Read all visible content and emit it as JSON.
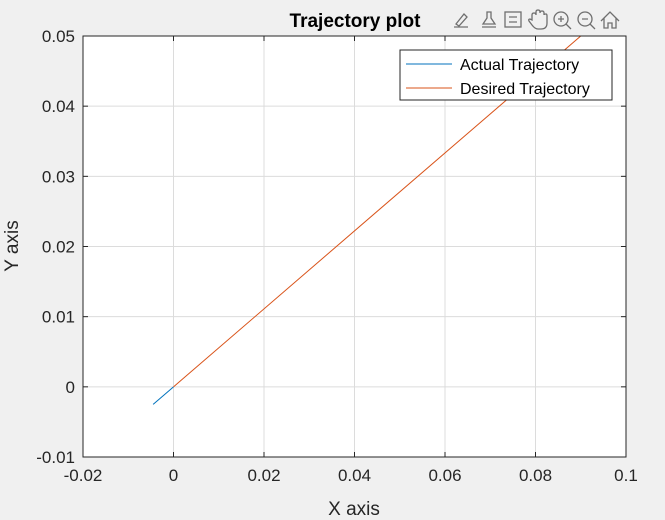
{
  "toolbar": {
    "icons": [
      "brush-icon",
      "datatip-icon",
      "restore-view-icon",
      "pan-hand-icon",
      "zoom-in-icon",
      "zoom-out-icon",
      "home-icon"
    ]
  },
  "colors": {
    "figure_bg": "#f0f0f0",
    "axes_bg": "#ffffff",
    "grid": "#dcdcdc",
    "actual": "#0072bd",
    "desired": "#d95319"
  },
  "chart_data": {
    "type": "line",
    "title": "Trajectory plot",
    "xlabel": "X axis",
    "ylabel": "Y axis",
    "xlim": [
      -0.02,
      0.1
    ],
    "ylim": [
      -0.01,
      0.05
    ],
    "xticks": [
      -0.02,
      0,
      0.02,
      0.04,
      0.06,
      0.08,
      0.1
    ],
    "yticks": [
      -0.01,
      0,
      0.01,
      0.02,
      0.03,
      0.04,
      0.05
    ],
    "xtick_labels": [
      "-0.02",
      "0",
      "0.02",
      "0.04",
      "0.06",
      "0.08",
      "0.1"
    ],
    "ytick_labels": [
      "-0.01",
      "0",
      "0.01",
      "0.02",
      "0.03",
      "0.04",
      "0.05"
    ],
    "grid": true,
    "legend_position": "top-right",
    "series": [
      {
        "name": "Actual Trajectory",
        "color": "#0072bd",
        "x": [
          -0.0045,
          0
        ],
        "y": [
          -0.0025,
          0
        ]
      },
      {
        "name": "Desired Trajectory",
        "color": "#d95319",
        "x": [
          0,
          0.09
        ],
        "y": [
          0,
          0.05
        ]
      }
    ]
  }
}
